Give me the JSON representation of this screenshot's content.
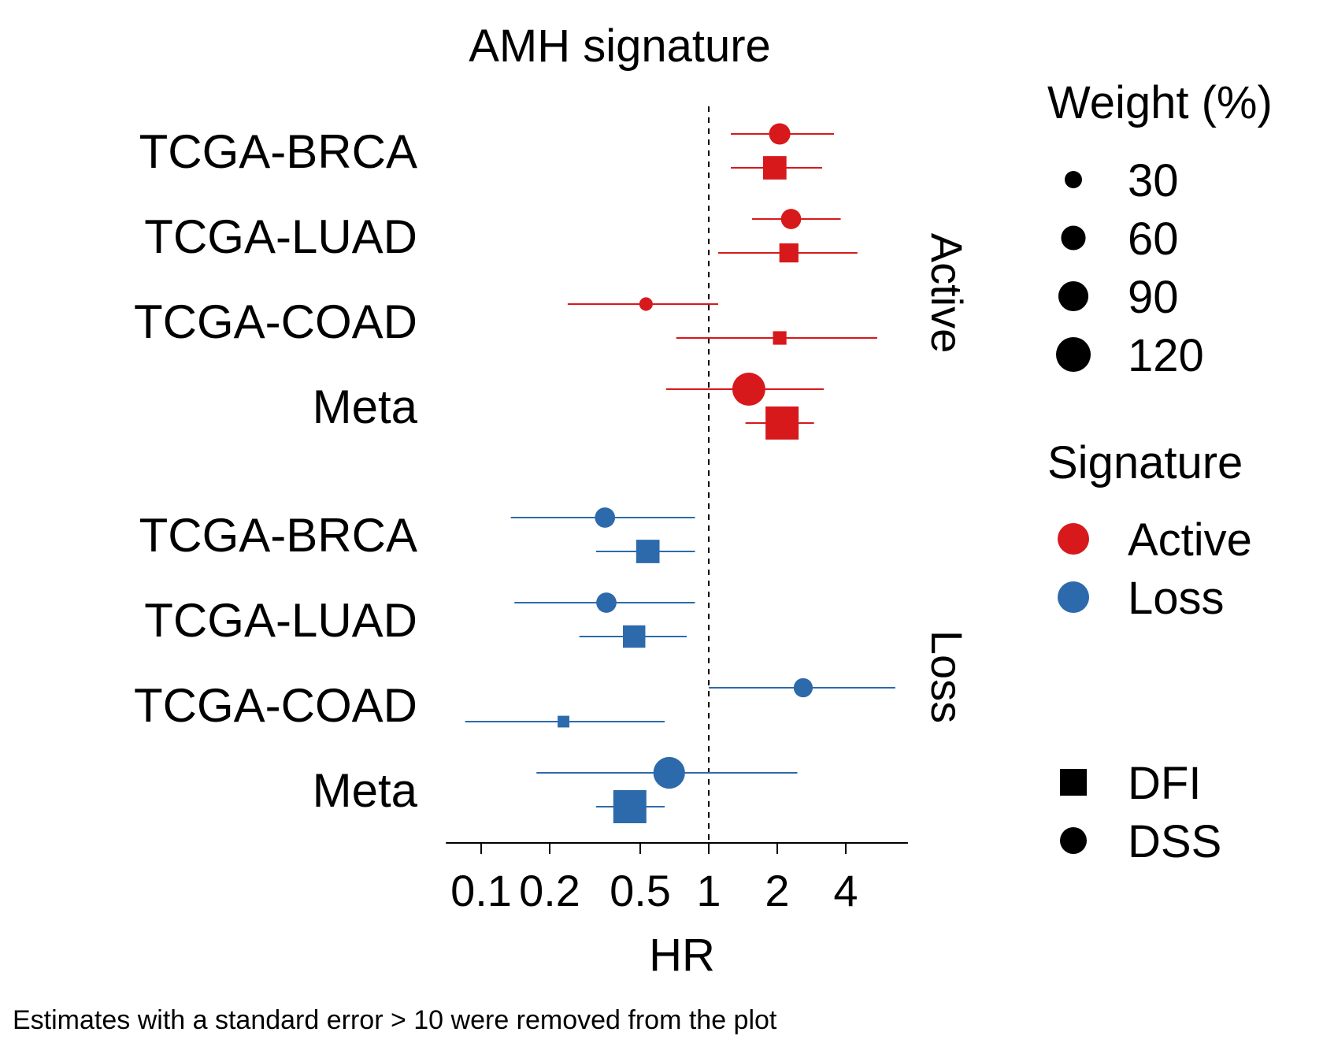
{
  "chart_data": {
    "type": "forest",
    "title": "AMH signature",
    "xlabel": "HR",
    "x_scale": "log",
    "reference_line": 1,
    "xlim": [
      0.07,
      7.5
    ],
    "x_ticks": [
      0.1,
      0.2,
      0.5,
      1,
      2,
      4
    ],
    "x_tick_labels": [
      "0.1",
      "0.2",
      "0.5",
      "1",
      "2",
      "4"
    ],
    "colors": {
      "Active": "#d7191c",
      "Loss": "#2c6aab"
    },
    "panels": [
      {
        "name": "Active",
        "rows": [
          {
            "label": "TCGA-BRCA",
            "points": [
              {
                "endpoint": "DSS",
                "hr": 2.05,
                "lower": 1.25,
                "upper": 3.55,
                "weight": 50
              },
              {
                "endpoint": "DFI",
                "hr": 1.95,
                "lower": 1.25,
                "upper": 3.15,
                "weight": 60
              }
            ]
          },
          {
            "label": "TCGA-LUAD",
            "points": [
              {
                "endpoint": "DSS",
                "hr": 2.3,
                "lower": 1.55,
                "upper": 3.8,
                "weight": 45
              },
              {
                "endpoint": "DFI",
                "hr": 2.25,
                "lower": 1.1,
                "upper": 4.5,
                "weight": 40
              }
            ]
          },
          {
            "label": "TCGA-COAD",
            "points": [
              {
                "endpoint": "DSS",
                "hr": 0.53,
                "lower": 0.24,
                "upper": 1.1,
                "weight": 20
              },
              {
                "endpoint": "DFI",
                "hr": 2.05,
                "lower": 0.72,
                "upper": 5.5,
                "weight": 20
              }
            ]
          },
          {
            "label": "Meta",
            "points": [
              {
                "endpoint": "DSS",
                "hr": 1.5,
                "lower": 0.65,
                "upper": 3.2,
                "weight": 120
              },
              {
                "endpoint": "DFI",
                "hr": 2.1,
                "lower": 1.45,
                "upper": 2.9,
                "weight": 120
              }
            ]
          }
        ]
      },
      {
        "name": "Loss",
        "rows": [
          {
            "label": "TCGA-BRCA",
            "points": [
              {
                "endpoint": "DSS",
                "hr": 0.35,
                "lower": 0.135,
                "upper": 0.87,
                "weight": 45
              },
              {
                "endpoint": "DFI",
                "hr": 0.54,
                "lower": 0.32,
                "upper": 0.87,
                "weight": 60
              }
            ]
          },
          {
            "label": "TCGA-LUAD",
            "points": [
              {
                "endpoint": "DSS",
                "hr": 0.355,
                "lower": 0.14,
                "upper": 0.87,
                "weight": 45
              },
              {
                "endpoint": "DFI",
                "hr": 0.47,
                "lower": 0.27,
                "upper": 0.8,
                "weight": 55
              }
            ]
          },
          {
            "label": "TCGA-COAD",
            "points": [
              {
                "endpoint": "DSS",
                "hr": 2.6,
                "lower": 1.0,
                "upper": 6.6,
                "weight": 40
              },
              {
                "endpoint": "DFI",
                "hr": 0.23,
                "lower": 0.085,
                "upper": 0.64,
                "weight": 15
              }
            ]
          },
          {
            "label": "Meta",
            "points": [
              {
                "endpoint": "DSS",
                "hr": 0.67,
                "lower": 0.175,
                "upper": 2.45,
                "weight": 110
              },
              {
                "endpoint": "DFI",
                "hr": 0.45,
                "lower": 0.32,
                "upper": 0.64,
                "weight": 120
              }
            ]
          }
        ]
      }
    ],
    "legends": {
      "weight": {
        "title": "Weight (%)",
        "values": [
          30,
          60,
          90,
          120
        ],
        "labels": [
          "30",
          "60",
          "90",
          "120"
        ]
      },
      "signature": {
        "title": "Signature",
        "entries": [
          "Active",
          "Loss"
        ]
      },
      "shape": {
        "entries": [
          {
            "label": "DFI",
            "shape": "square"
          },
          {
            "label": "DSS",
            "shape": "circle"
          }
        ]
      }
    },
    "caption": "Estimates with a standard error > 10 were removed from the plot"
  }
}
